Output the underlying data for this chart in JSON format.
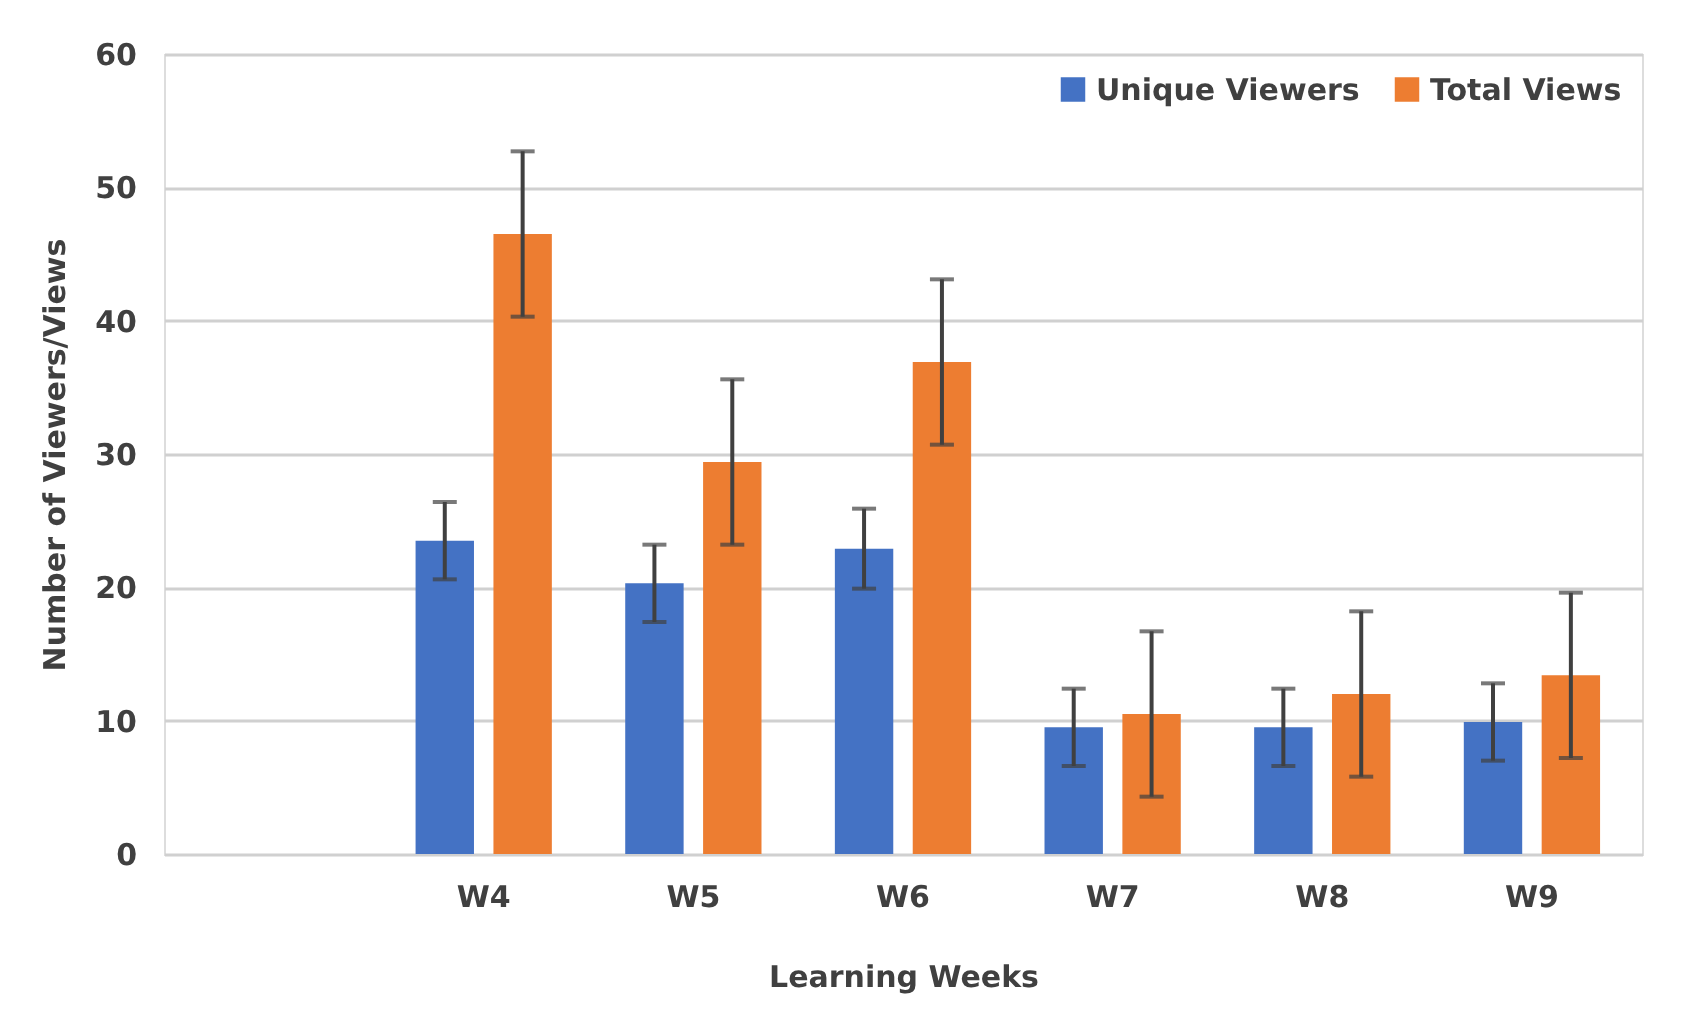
{
  "chart_data": {
    "type": "bar",
    "xlabel": "Learning Weeks",
    "ylabel": "Number of Viewers/Views",
    "categories": [
      null,
      "W4",
      "W5",
      "W6",
      "W7",
      "W8",
      "W9"
    ],
    "series": [
      {
        "name": "Unique Viewers",
        "color": "#4472c4",
        "values": [
          null,
          23.5,
          20.3,
          22.9,
          9.5,
          9.5,
          9.9
        ],
        "errors": [
          null,
          2.9,
          2.9,
          3.0,
          2.9,
          2.9,
          2.9
        ]
      },
      {
        "name": "Total Views",
        "color": "#ed7d31",
        "values": [
          null,
          46.5,
          29.4,
          36.9,
          10.5,
          12.0,
          13.4
        ],
        "errors": [
          null,
          6.2,
          6.2,
          6.2,
          6.2,
          6.2,
          6.2
        ]
      }
    ],
    "ylim": [
      0,
      60
    ],
    "yticks": [
      0,
      10,
      20,
      30,
      40,
      50,
      60
    ],
    "grid": "y",
    "legend": "top right"
  }
}
